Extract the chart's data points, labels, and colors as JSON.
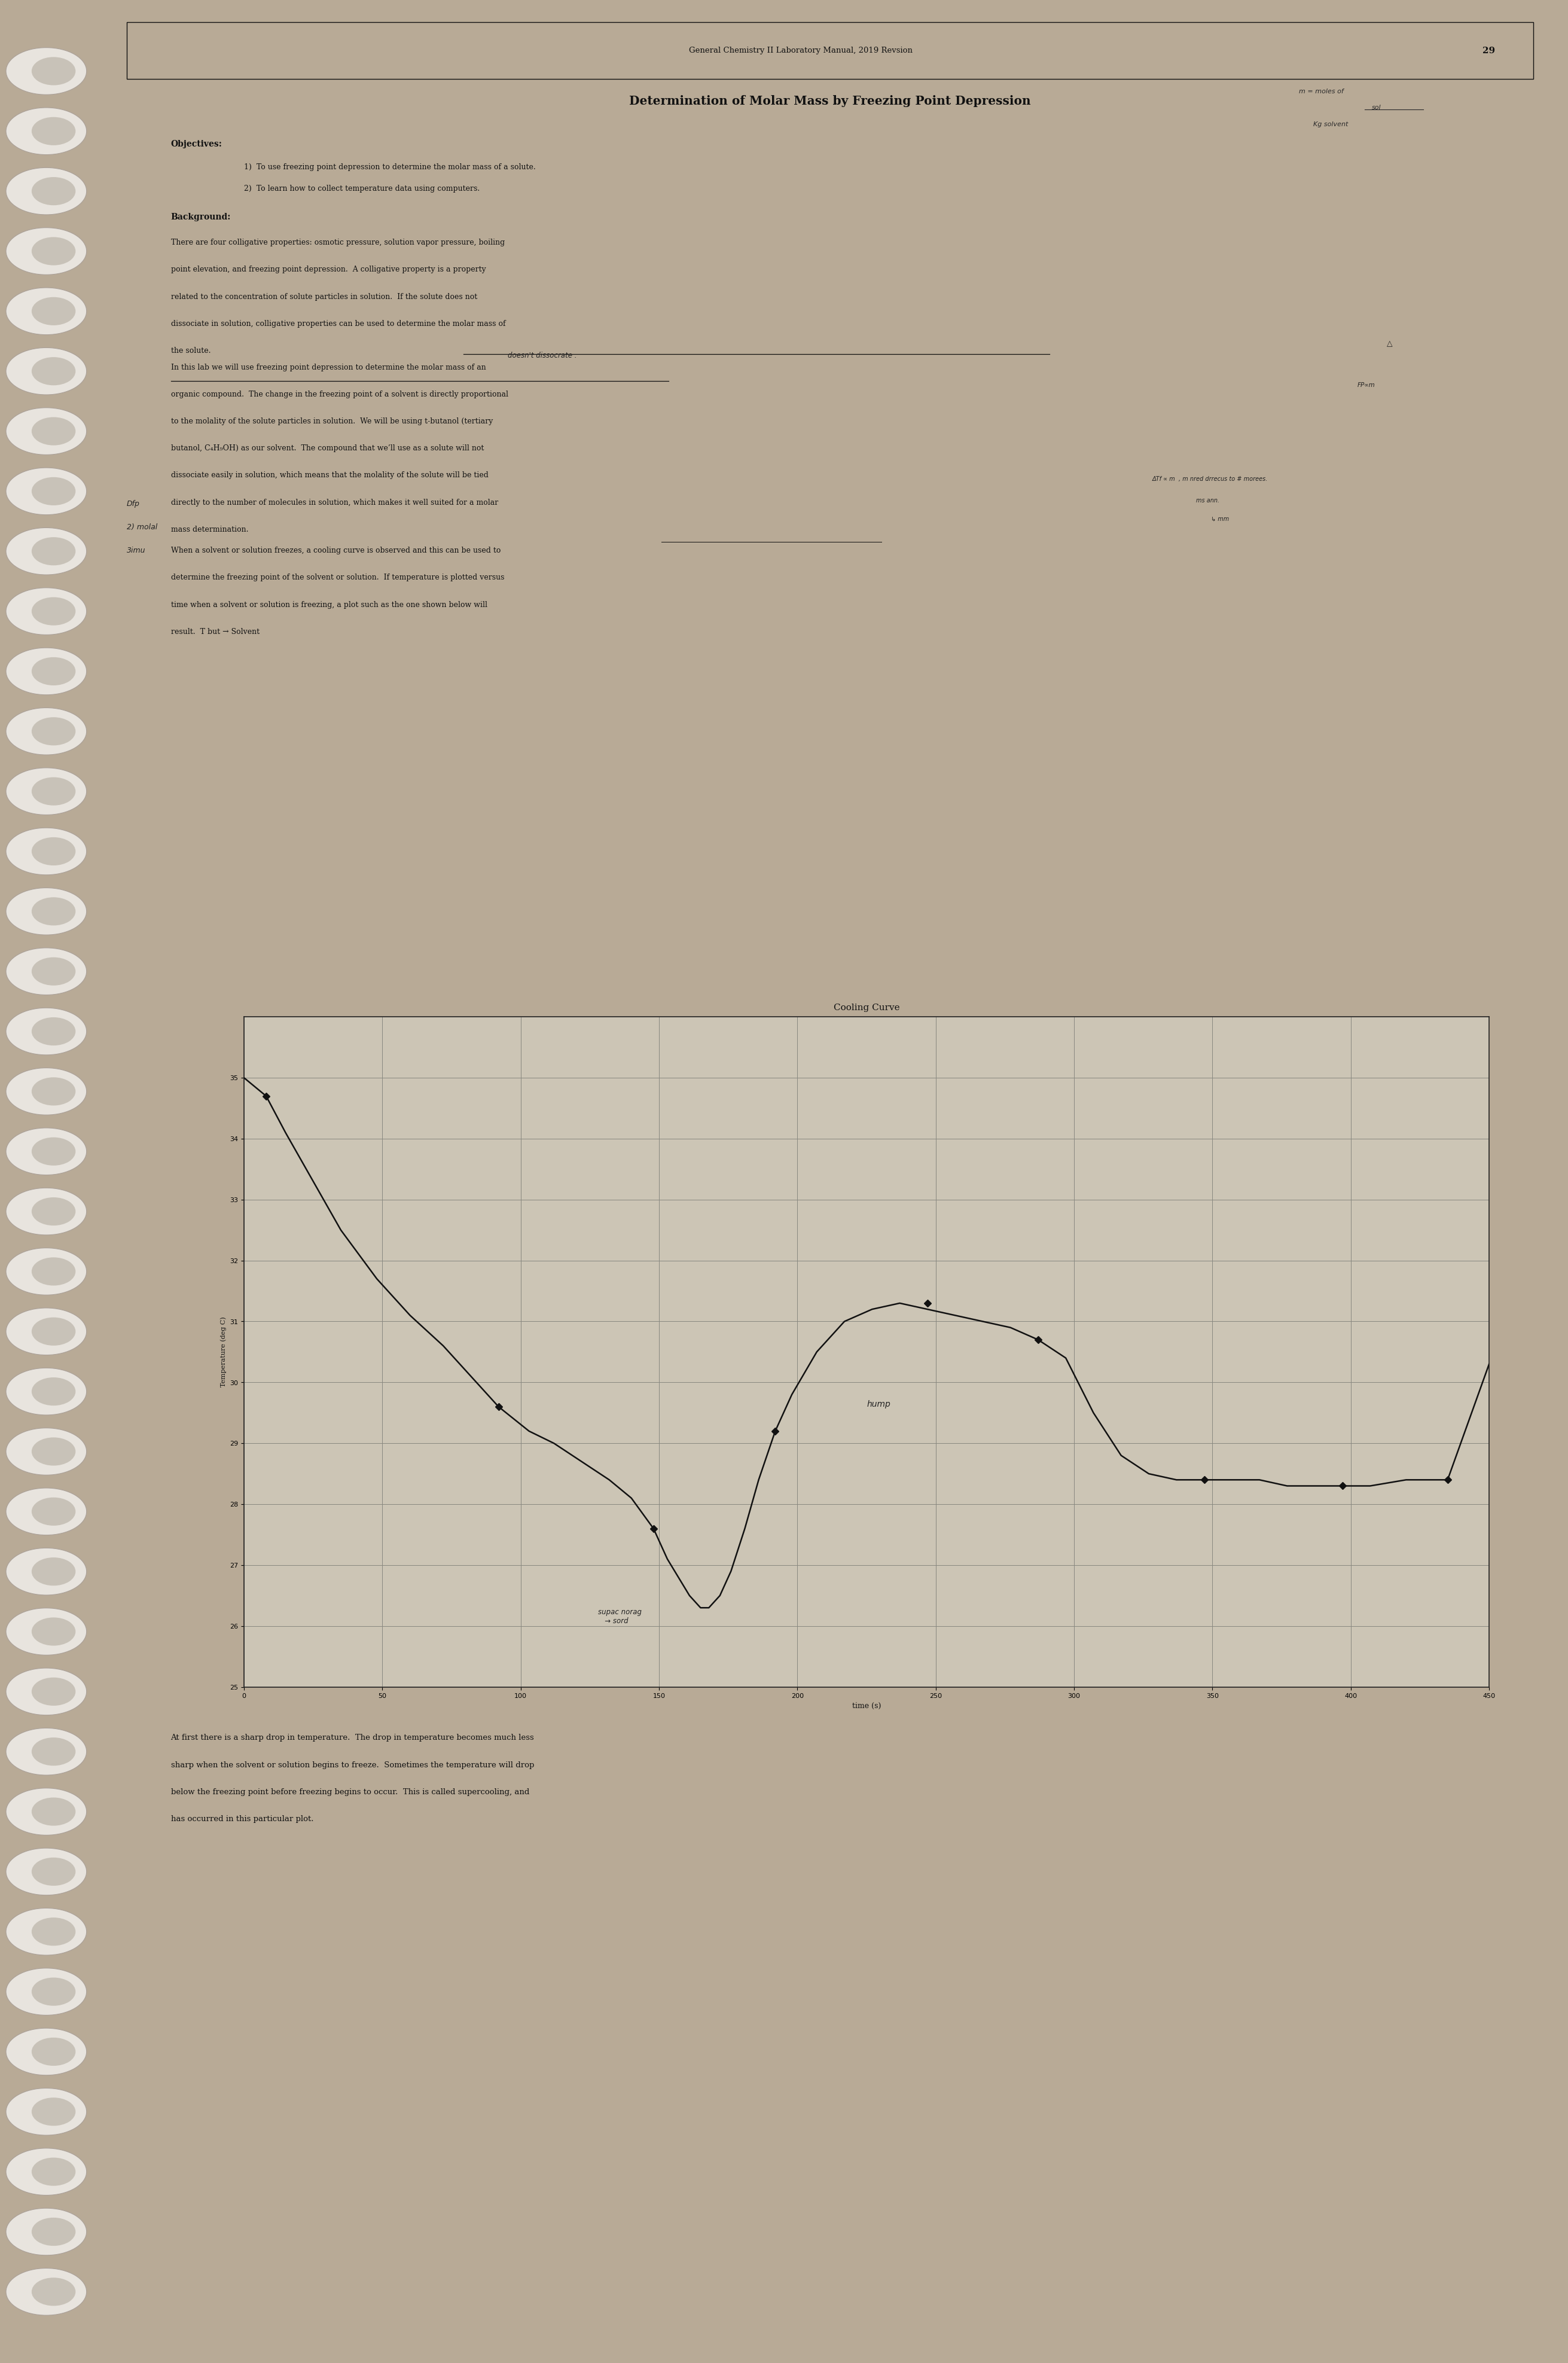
{
  "page_number": "29",
  "header": "General Chemistry II Laboratory Manual, 2019 Revsion",
  "title": "Determination of Molar Mass by Freezing Point Depression",
  "objectives_header": "Objectives:",
  "obj1": "To use freezing point depression to determine the molar mass of a solute.",
  "obj2": "To learn how to collect temperature data using computers.",
  "background_header": "Background:",
  "bg1_line1": "There are four colligative properties: osmotic pressure, solution vapor pressure, boiling",
  "bg1_line2": "point elevation, and freezing point depression.  A colligative property is a property",
  "bg1_line3": "related to the concentration of solute particles in solution.  If the solute does not",
  "bg1_line4": "dissociate in solution, colligative properties can be used to determine the molar mass of",
  "bg1_line5": "the solute.",
  "hw_doesnt": "doesn't dissocrate .",
  "hw_triangle": "△",
  "bg2_line1": "In this lab we will use freezing point depression to determine the molar mass of an",
  "bg2_line2": "organic compound.  The change in the freezing point of a solvent is directly proportional",
  "bg2_line3": "to the molality of the solute particles in solution.  We will be using t-butanol (tertiary",
  "bg2_line4": "butanol, C₄H₉OH) as our solvent.  The compound that we’ll use as a solute will not",
  "bg2_line5": "dissociate easily in solution, which means that the molality of the solute will be tied",
  "bg2_line6": "directly to the number of molecules in solution, which makes it well suited for a molar",
  "bg2_line7": "mass determination.",
  "hw_right1": "FP∝m",
  "hw_atf": "ΔTf ∝ m   , m nred drrecus to # morees.",
  "hw_msann": "   ms ann.",
  "hw_mm": "↳ mm",
  "hw_left1": "Dfp",
  "hw_left2": "2) molal",
  "hw_left3": "3imu",
  "bg3_line1": "When a solvent or solution freezes, a cooling curve is observed and this can be used to",
  "bg3_line2": "determine the freezing point of the solvent or solution.  If temperature is plotted versus",
  "bg3_line3": "time when a solvent or solution is freezing, a plot such as the one shown below will",
  "bg3_line4": "result.  T but → Solvent",
  "chart_title": "Cooling Curve",
  "xlabel": "time (s)",
  "ylabel": "Temperature (deg C)",
  "xlim": [
    0,
    450
  ],
  "ylim": [
    25,
    36
  ],
  "xticks": [
    0,
    50,
    100,
    150,
    200,
    250,
    300,
    350,
    400,
    450
  ],
  "yticks": [
    25,
    26,
    27,
    28,
    29,
    30,
    31,
    32,
    33,
    34,
    35
  ],
  "curve_x": [
    0,
    8,
    15,
    25,
    35,
    48,
    60,
    72,
    82,
    92,
    103,
    112,
    122,
    132,
    140,
    148,
    153,
    157,
    161,
    165,
    168,
    172,
    176,
    181,
    186,
    192,
    198,
    207,
    217,
    227,
    237,
    247,
    257,
    267,
    277,
    287,
    297,
    307,
    317,
    327,
    337,
    347,
    357,
    367,
    377,
    387,
    397,
    407,
    420,
    435,
    450
  ],
  "curve_y": [
    35.0,
    34.7,
    34.1,
    33.3,
    32.5,
    31.7,
    31.1,
    30.6,
    30.1,
    29.6,
    29.2,
    29.0,
    28.7,
    28.4,
    28.1,
    27.6,
    27.1,
    26.8,
    26.5,
    26.3,
    26.3,
    26.5,
    26.9,
    27.6,
    28.4,
    29.2,
    29.8,
    30.5,
    31.0,
    31.2,
    31.3,
    31.2,
    31.1,
    31.0,
    30.9,
    30.7,
    30.4,
    29.5,
    28.8,
    28.5,
    28.4,
    28.4,
    28.4,
    28.4,
    28.3,
    28.3,
    28.3,
    28.3,
    28.4,
    28.4,
    30.3
  ],
  "marker_x": [
    8,
    92,
    148,
    192,
    247,
    287,
    347,
    397,
    435
  ],
  "marker_y": [
    34.7,
    29.6,
    27.6,
    29.2,
    31.3,
    30.7,
    28.4,
    28.3,
    28.4
  ],
  "hw_hump": "hump",
  "hw_super": "supac norag\n   → sord",
  "after_line1": "At first there is a sharp drop in temperature.  The drop in temperature becomes much less",
  "after_line2": "sharp when the solvent or solution begins to freeze.  Sometimes the temperature will drop",
  "after_line3": "below the freezing point before freezing begins to occur.  This is called supercooling, and",
  "after_line4": "has occurred in this particular plot.",
  "bg_color": "#b8aa96",
  "page_color": "#d4cbbe",
  "chart_bg": "#ccc5b5",
  "text_color": "#111111",
  "line_color": "#111111",
  "marker_color": "#111111",
  "grid_color": "#888880",
  "spiral_color": "#e8e4de",
  "spiral_shadow": "#aaa098"
}
